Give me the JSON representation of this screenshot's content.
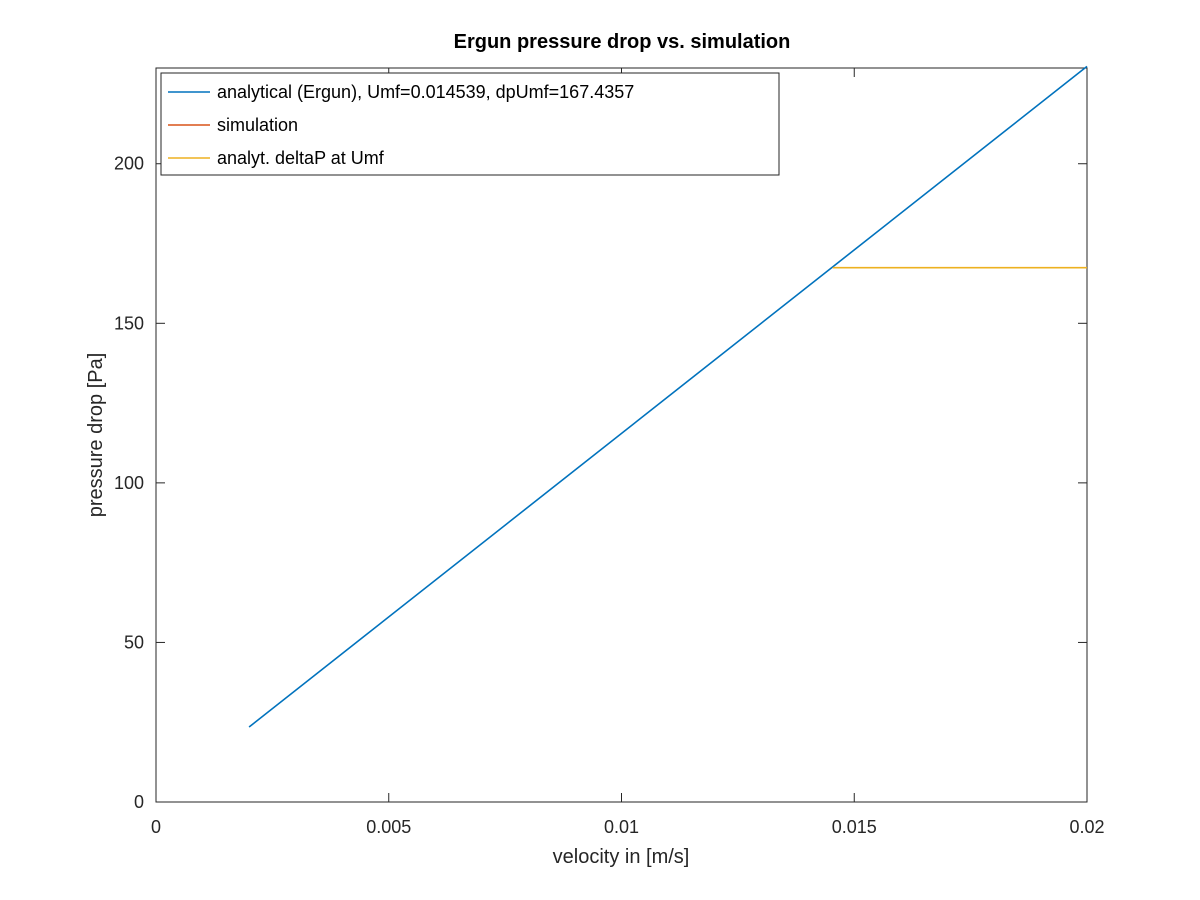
{
  "chart_data": {
    "type": "line",
    "title": "Ergun pressure drop vs. simulation",
    "xlabel": "velocity in [m/s]",
    "ylabel": "pressure drop [Pa]",
    "xlim": [
      0,
      0.02
    ],
    "ylim": [
      0,
      230
    ],
    "xticks": [
      0,
      0.005,
      0.01,
      0.015,
      0.02
    ],
    "xtick_labels": [
      "0",
      "0.005",
      "0.01",
      "0.015",
      "0.02"
    ],
    "yticks": [
      0,
      50,
      100,
      150,
      200
    ],
    "ytick_labels": [
      "0",
      "50",
      "100",
      "150",
      "200"
    ],
    "grid": false,
    "legend_position": "top-left",
    "series": [
      {
        "name": "analytical (Ergun), Umf=0.014539, dpUmf=167.4357",
        "color": "#0072bd",
        "x": [
          0.002,
          0.02
        ],
        "y": [
          23.5,
          230.5
        ]
      },
      {
        "name": "simulation",
        "color": "#d95319",
        "x": [],
        "y": []
      },
      {
        "name": "analyt. deltaP at Umf",
        "color": "#edb120",
        "x": [
          0.014539,
          0.02
        ],
        "y": [
          167.4357,
          167.4357
        ]
      }
    ]
  }
}
